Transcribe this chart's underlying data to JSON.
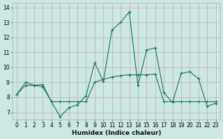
{
  "xlabel": "Humidex (Indice chaleur)",
  "background_color": "#cce8e2",
  "grid_color": "#b0c4be",
  "line_color": "#1a7060",
  "xlim": [
    -0.5,
    23.5
  ],
  "ylim": [
    6.5,
    14.3
  ],
  "yticks": [
    7,
    8,
    9,
    10,
    11,
    12,
    13,
    14
  ],
  "xticks": [
    0,
    1,
    2,
    3,
    4,
    5,
    6,
    7,
    8,
    9,
    10,
    11,
    12,
    13,
    14,
    15,
    16,
    17,
    18,
    19,
    20,
    21,
    22,
    23
  ],
  "series1_x": [
    0,
    1,
    2,
    3,
    4,
    5,
    6,
    7,
    8,
    9,
    10,
    11,
    12,
    13,
    14,
    15,
    16,
    17,
    18,
    19,
    20,
    21,
    22,
    23
  ],
  "series1_y": [
    8.2,
    9.0,
    8.8,
    8.7,
    7.7,
    6.7,
    7.3,
    7.5,
    8.1,
    10.3,
    9.05,
    12.5,
    13.0,
    13.7,
    8.8,
    11.15,
    11.3,
    8.3,
    7.65,
    9.6,
    9.7,
    9.25,
    7.4,
    7.6
  ],
  "series2_x": [
    0,
    1,
    2,
    3,
    4,
    5,
    6,
    7,
    8,
    9,
    10,
    11,
    12,
    13,
    14,
    15,
    16,
    17,
    18,
    19,
    20,
    21,
    22,
    23
  ],
  "series2_y": [
    8.2,
    8.8,
    8.8,
    8.85,
    7.7,
    7.7,
    7.7,
    7.7,
    7.7,
    9.0,
    9.2,
    9.35,
    9.45,
    9.5,
    9.5,
    9.5,
    9.55,
    7.7,
    7.7,
    7.7,
    7.7,
    7.7,
    7.7,
    7.7
  ]
}
